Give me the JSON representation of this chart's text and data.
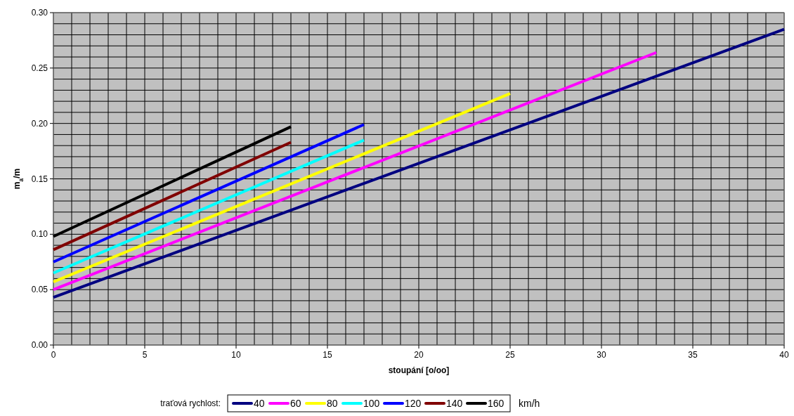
{
  "chart_data": {
    "type": "line",
    "xlabel": "stoupání [o/oo]",
    "ylabel": "m$_{a}$/m",
    "legend_title": "traťová rychlost:",
    "annotations": [
      "km/h"
    ],
    "xlim": [
      0,
      40
    ],
    "ylim": [
      0,
      0.3
    ],
    "xticks": [
      0,
      {
        "value": 1,
        "label": null
      },
      {
        "value": 2,
        "label": null
      },
      {
        "value": 3,
        "label": null
      },
      {
        "value": 4,
        "label": null
      },
      5,
      {
        "value": 6,
        "label": null
      },
      {
        "value": 7,
        "label": null
      },
      {
        "value": 8,
        "label": null
      },
      {
        "value": 9,
        "label": null
      },
      10,
      {
        "value": 11,
        "label": null
      },
      {
        "value": 12,
        "label": null
      },
      {
        "value": 13,
        "label": null
      },
      {
        "value": 14,
        "label": null
      },
      15,
      {
        "value": 16,
        "label": null
      },
      {
        "value": 17,
        "label": null
      },
      {
        "value": 18,
        "label": null
      },
      {
        "value": 19,
        "label": null
      },
      20,
      {
        "value": 21,
        "label": null
      },
      {
        "value": 22,
        "label": null
      },
      {
        "value": 23,
        "label": null
      },
      {
        "value": 24,
        "label": null
      },
      25,
      {
        "value": 26,
        "label": null
      },
      {
        "value": 27,
        "label": null
      },
      {
        "value": 28,
        "label": null
      },
      {
        "value": 29,
        "label": null
      },
      30,
      {
        "value": 31,
        "label": null
      },
      {
        "value": 32,
        "label": null
      },
      {
        "value": 33,
        "label": null
      },
      {
        "value": 34,
        "label": null
      },
      35,
      {
        "value": 36,
        "label": null
      },
      {
        "value": 37,
        "label": null
      },
      {
        "value": 38,
        "label": null
      },
      {
        "value": 39,
        "label": null
      },
      40
    ],
    "yticks": [
      {
        "value": 0,
        "label": "0.00"
      },
      {
        "value": 0.01,
        "label": null
      },
      {
        "value": 0.02,
        "label": null
      },
      {
        "value": 0.03,
        "label": null
      },
      {
        "value": 0.04,
        "label": null
      },
      {
        "value": 0.05,
        "label": "0.05"
      },
      {
        "value": 0.06,
        "label": null
      },
      {
        "value": 0.07,
        "label": null
      },
      {
        "value": 0.08,
        "label": null
      },
      {
        "value": 0.09,
        "label": null
      },
      {
        "value": 0.1,
        "label": "0.10"
      },
      {
        "value": 0.11,
        "label": null
      },
      {
        "value": 0.12,
        "label": null
      },
      {
        "value": 0.13,
        "label": null
      },
      {
        "value": 0.14,
        "label": null
      },
      {
        "value": 0.15,
        "label": "0.15"
      },
      {
        "value": 0.16,
        "label": null
      },
      {
        "value": 0.17,
        "label": null
      },
      {
        "value": 0.18,
        "label": null
      },
      {
        "value": 0.19,
        "label": null
      },
      {
        "value": 0.2,
        "label": "0.20"
      },
      {
        "value": 0.21,
        "label": null
      },
      {
        "value": 0.22,
        "label": null
      },
      {
        "value": 0.23,
        "label": null
      },
      {
        "value": 0.24,
        "label": null
      },
      {
        "value": 0.25,
        "label": "0.25"
      },
      {
        "value": 0.26,
        "label": null
      },
      {
        "value": 0.27,
        "label": null
      },
      {
        "value": 0.28,
        "label": null
      },
      {
        "value": 0.29,
        "label": null
      },
      {
        "value": 0.3,
        "label": "0.30"
      }
    ],
    "grid": true,
    "legend": "bottom",
    "marker": "none",
    "line_style": "solid",
    "series": [
      {
        "name": "40",
        "color": "#000080",
        "x": [
          0,
          40
        ],
        "values": [
          0.043,
          0.285
        ]
      },
      {
        "name": "60",
        "color": "#ff00ff",
        "x": [
          0,
          33
        ],
        "values": [
          0.05,
          0.264
        ]
      },
      {
        "name": "80",
        "color": "#ffff00",
        "x": [
          0,
          25
        ],
        "values": [
          0.057,
          0.227
        ]
      },
      {
        "name": "100",
        "color": "#00ffff",
        "x": [
          0,
          17
        ],
        "values": [
          0.065,
          0.185
        ]
      },
      {
        "name": "120",
        "color": "#0000ff",
        "x": [
          0,
          17
        ],
        "values": [
          0.075,
          0.199
        ]
      },
      {
        "name": "140",
        "color": "#800000",
        "x": [
          0,
          13
        ],
        "values": [
          0.086,
          0.183
        ]
      },
      {
        "name": "160",
        "color": "#000000",
        "x": [
          0,
          13
        ],
        "values": [
          0.098,
          0.197
        ]
      }
    ]
  }
}
